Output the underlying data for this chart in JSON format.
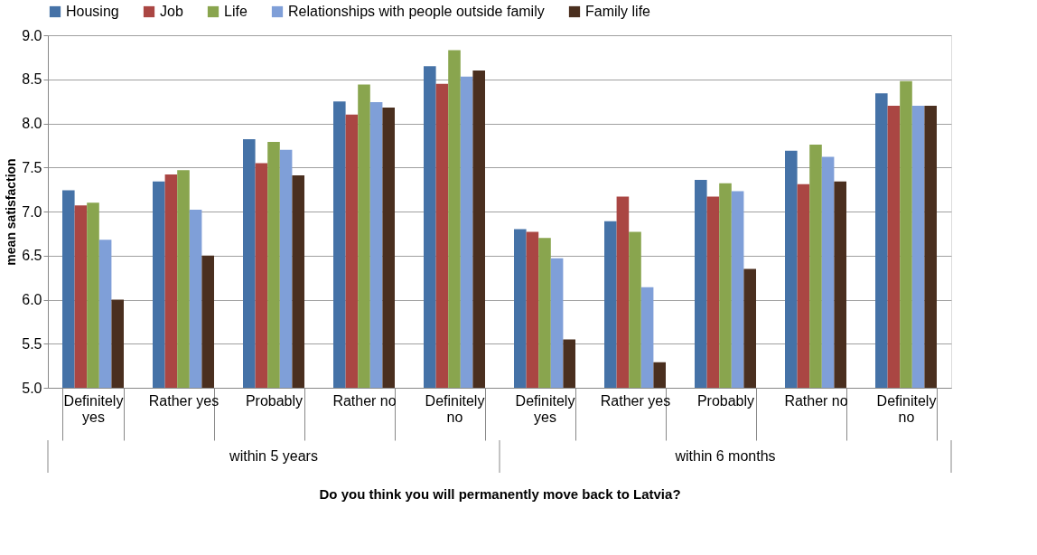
{
  "chart_data": {
    "type": "bar",
    "xlabel": "Do you think you will permanently move back to Latvia?",
    "ylabel": "mean satisfaction",
    "categories": [
      "Definitely yes",
      "Rather yes",
      "Probably",
      "Rather no",
      "Definitely no",
      "Definitely yes",
      "Rather yes",
      "Probably",
      "Rather no",
      "Definitely no"
    ],
    "series": [
      {
        "name": "Housing",
        "color": "#4572a7",
        "values": [
          7.24,
          7.34,
          7.82,
          8.25,
          8.65,
          6.8,
          6.89,
          7.36,
          7.69,
          8.34
        ]
      },
      {
        "name": "Job",
        "color": "#aa4643",
        "values": [
          7.07,
          7.42,
          7.55,
          8.1,
          8.45,
          6.77,
          7.17,
          7.17,
          7.31,
          8.2
        ]
      },
      {
        "name": "Life",
        "color": "#89a54e",
        "values": [
          7.1,
          7.47,
          7.79,
          8.44,
          8.83,
          6.7,
          6.77,
          7.32,
          7.76,
          8.48
        ]
      },
      {
        "name": "Relationships with people outside family",
        "color": "#7f9fd8",
        "values": [
          6.68,
          7.02,
          7.7,
          8.24,
          8.53,
          6.47,
          6.14,
          7.23,
          7.62,
          8.2
        ]
      },
      {
        "name": "Family life",
        "color": "#4a2f1f",
        "values": [
          6.0,
          6.5,
          7.41,
          8.18,
          8.6,
          5.55,
          5.29,
          6.35,
          7.34,
          8.2
        ]
      }
    ],
    "annotations": [
      "within 5 years",
      "within 6 months"
    ],
    "ylim": [
      5.0,
      9.0
    ],
    "yticks": [
      {
        "value": 5.0,
        "label": "5.0"
      },
      {
        "value": 5.5,
        "label": "5.5"
      },
      {
        "value": 6.0,
        "label": "6.0"
      },
      {
        "value": 6.5,
        "label": "6.5"
      },
      {
        "value": 7.0,
        "label": "7.0"
      },
      {
        "value": 7.5,
        "label": "7.5"
      },
      {
        "value": 8.0,
        "label": "8.0"
      },
      {
        "value": 8.5,
        "label": "8.5"
      },
      {
        "value": 9.0,
        "label": "9.0"
      }
    ],
    "grid": "y",
    "legend": "top"
  }
}
